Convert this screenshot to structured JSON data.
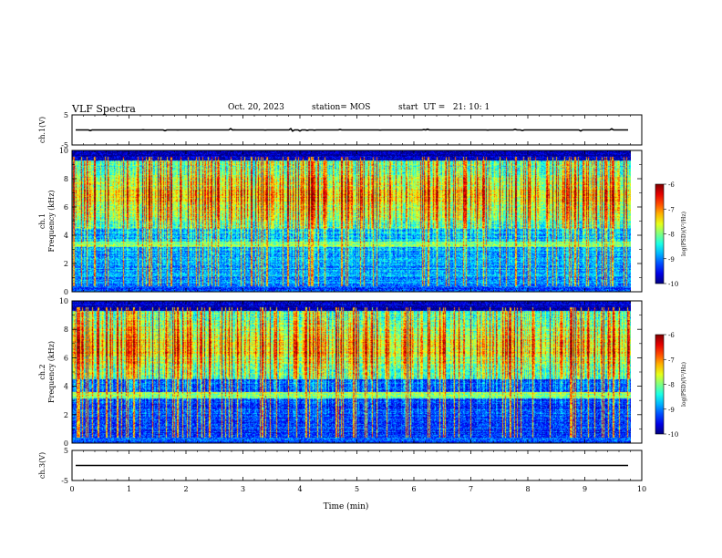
{
  "header": {
    "title": "VLF Spectra",
    "date": "Oct. 20, 2023",
    "station": "station= MOS",
    "start": "start  UT =   21: 10: 1"
  },
  "chart_data": [
    {
      "type": "line",
      "panel": "ch1-waveform",
      "ylabel": "ch.1(V)",
      "ylim": [
        -5,
        5
      ],
      "yticks": [
        "5",
        "-5"
      ],
      "xlim": [
        0,
        10
      ],
      "series": [
        {
          "values_approx_constant": 0
        }
      ]
    },
    {
      "type": "heatmap",
      "panel": "ch1-spectrogram",
      "ylabel_line1": "ch.1",
      "ylabel_line2": "Frequency  (kHz)",
      "ylim": [
        0,
        10
      ],
      "yticks": [
        "0",
        "2",
        "4",
        "6",
        "8",
        "10"
      ],
      "xlim": [
        0,
        9.8
      ],
      "colorbar": {
        "label": "log(PSD)(V²/Hz)",
        "ticks": [
          "-6",
          "-7",
          "-8",
          "-9",
          "-10"
        ],
        "range": [
          -10,
          -6
        ]
      },
      "seed": 11
    },
    {
      "type": "heatmap",
      "panel": "ch2-spectrogram",
      "ylabel_line1": "ch.2",
      "ylabel_line2": "Frequency  (kHz)",
      "ylim": [
        0,
        10
      ],
      "yticks": [
        "0",
        "2",
        "4",
        "6",
        "8",
        "10"
      ],
      "xlim": [
        0,
        9.8
      ],
      "colorbar": {
        "label": "log(PSD)(V²/Hz)",
        "ticks": [
          "-6",
          "-7",
          "-8",
          "-9",
          "-10"
        ],
        "range": [
          -10,
          -6
        ]
      },
      "seed": 29
    },
    {
      "type": "line",
      "panel": "ch3-waveform",
      "ylabel": "ch.3(V)",
      "ylim": [
        -5,
        5
      ],
      "yticks": [
        "5",
        "-5"
      ],
      "xlim": [
        0,
        10
      ],
      "series": [
        {
          "values_approx_constant": 0
        }
      ]
    }
  ],
  "xaxis": {
    "label": "Time  (min)",
    "ticks": [
      "0",
      "1",
      "2",
      "3",
      "4",
      "5",
      "6",
      "7",
      "8",
      "9",
      "10"
    ]
  },
  "colors": {
    "jet_low": "#00007f",
    "jet_high": "#7f0000",
    "line": "#000000"
  }
}
